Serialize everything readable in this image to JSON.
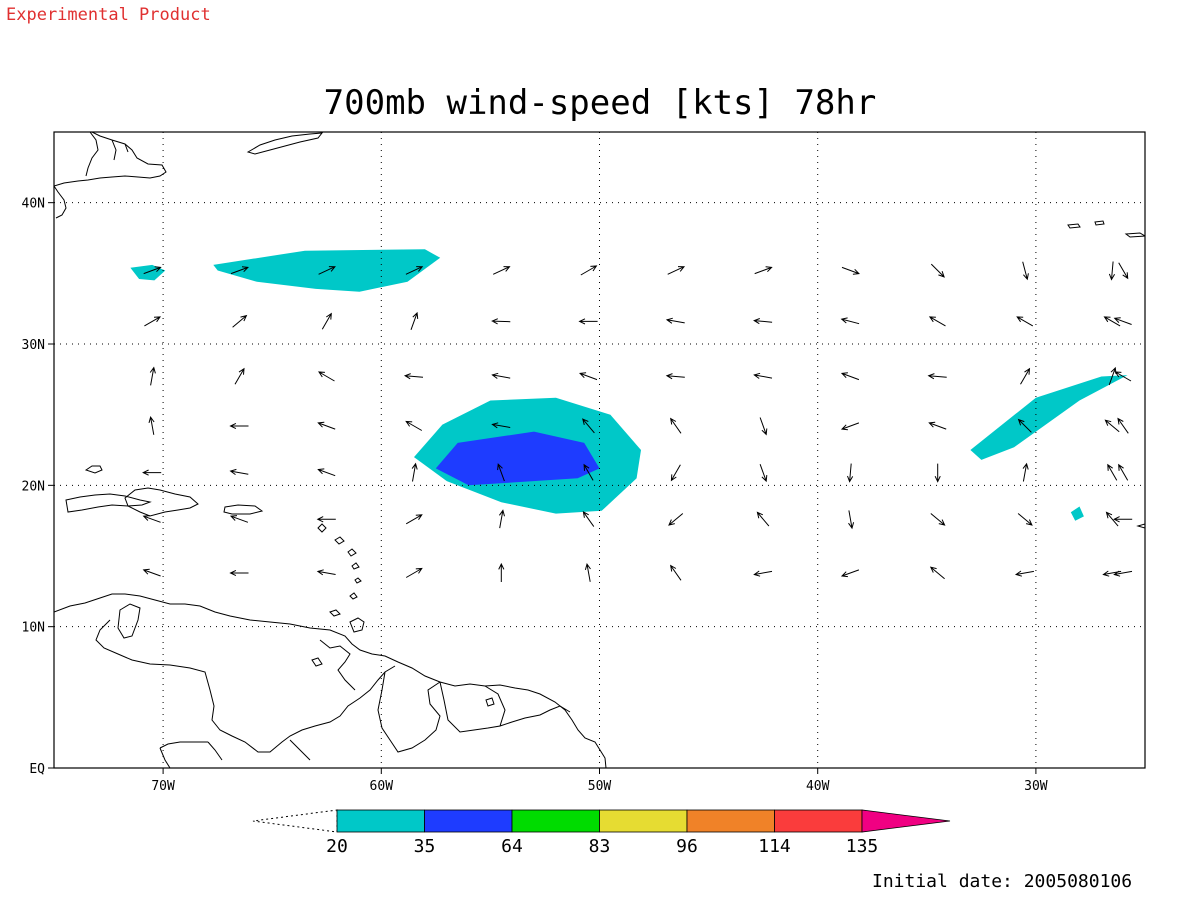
{
  "header": {
    "experimental_label": "Experimental Product",
    "title": "700mb wind-speed [kts] 78hr"
  },
  "map": {
    "lon_range": [
      -75,
      -25
    ],
    "lat_range": [
      0,
      45
    ],
    "grid_style": "dotted",
    "lon_ticks": [
      {
        "value": -70,
        "label": "70W"
      },
      {
        "value": -60,
        "label": "60W"
      },
      {
        "value": -50,
        "label": "50W"
      },
      {
        "value": -40,
        "label": "40W"
      },
      {
        "value": -30,
        "label": "30W"
      }
    ],
    "lat_ticks": [
      {
        "value": 40,
        "label": "40N"
      },
      {
        "value": 30,
        "label": "30N"
      },
      {
        "value": 20,
        "label": "20N"
      },
      {
        "value": 10,
        "label": "10N"
      },
      {
        "value": 0,
        "label": "EQ"
      }
    ]
  },
  "wind_field": {
    "shaded_regions": [
      {
        "name": "subtropical-jet-band",
        "level": "20-35",
        "lonlat": [
          [
            -67.7,
            35.6
          ],
          [
            -63.5,
            36.6
          ],
          [
            -58.0,
            36.7
          ],
          [
            -57.3,
            36.1
          ],
          [
            -58.8,
            34.4
          ],
          [
            -61.0,
            33.7
          ],
          [
            -63.0,
            33.9
          ],
          [
            -65.7,
            34.4
          ],
          [
            -67.5,
            35.2
          ]
        ]
      },
      {
        "name": "western-jet-patch",
        "level": "20-35",
        "lonlat": [
          [
            -71.5,
            35.4
          ],
          [
            -70.5,
            35.6
          ],
          [
            -69.9,
            35.2
          ],
          [
            -70.4,
            34.5
          ],
          [
            -71.1,
            34.6
          ]
        ]
      },
      {
        "name": "storm-outer-ring",
        "level": "20-35",
        "lonlat": [
          [
            -57.2,
            24.3
          ],
          [
            -55.0,
            26.0
          ],
          [
            -52.0,
            26.2
          ],
          [
            -49.5,
            25.0
          ],
          [
            -48.1,
            22.5
          ],
          [
            -48.3,
            20.5
          ],
          [
            -49.9,
            18.2
          ],
          [
            -52.0,
            18.0
          ],
          [
            -54.5,
            18.8
          ],
          [
            -57.0,
            20.3
          ],
          [
            -58.5,
            22.0
          ]
        ]
      },
      {
        "name": "storm-inner-core",
        "level": "35-64",
        "lonlat": [
          [
            -57.5,
            21.2
          ],
          [
            -56.5,
            23.0
          ],
          [
            -53.0,
            23.8
          ],
          [
            -50.7,
            23.0
          ],
          [
            -50.0,
            21.2
          ],
          [
            -51.0,
            20.5
          ],
          [
            -54.0,
            20.2
          ],
          [
            -56.0,
            20.0
          ]
        ]
      },
      {
        "name": "eastern-jet-streak",
        "level": "20-35",
        "lonlat": [
          [
            -33.0,
            22.5
          ],
          [
            -30.0,
            26.2
          ],
          [
            -27.0,
            27.7
          ],
          [
            -25.8,
            27.8
          ],
          [
            -28.0,
            26.0
          ],
          [
            -31.0,
            22.7
          ],
          [
            -32.5,
            21.8
          ]
        ]
      },
      {
        "name": "small-eastern-patch",
        "level": "20-35",
        "lonlat": [
          [
            -28.0,
            18.5
          ],
          [
            -27.8,
            17.8
          ],
          [
            -28.2,
            17.5
          ],
          [
            -28.4,
            18.1
          ]
        ]
      }
    ],
    "arrow_rows": [
      {
        "lat": 35.2,
        "directions_deg": [
          20,
          20,
          25,
          25,
          25,
          30,
          25,
          20,
          -20,
          -45,
          -75,
          -95,
          -60,
          -45,
          -45
        ]
      },
      {
        "lat": 31.6,
        "directions_deg": [
          30,
          40,
          60,
          70,
          178,
          180,
          170,
          175,
          165,
          150,
          150,
          150,
          160,
          80,
          85
        ]
      },
      {
        "lat": 27.7,
        "directions_deg": [
          80,
          60,
          150,
          175,
          170,
          160,
          175,
          170,
          160,
          175,
          60,
          70,
          150,
          125,
          125
        ]
      },
      {
        "lat": 24.2,
        "directions_deg": [
          100,
          180,
          160,
          150,
          170,
          130,
          125,
          -70,
          -160,
          160,
          135,
          140,
          125,
          105,
          105
        ]
      },
      {
        "lat": 20.9,
        "directions_deg": [
          180,
          170,
          160,
          80,
          110,
          120,
          -120,
          -70,
          -95,
          -90,
          80,
          120,
          120,
          120,
          120
        ]
      },
      {
        "lat": 17.6,
        "directions_deg": [
          160,
          160,
          180,
          30,
          80,
          125,
          -140,
          130,
          -80,
          -40,
          -40,
          130,
          180,
          180,
          180
        ]
      },
      {
        "lat": 13.8,
        "directions_deg": [
          160,
          180,
          170,
          30,
          90,
          100,
          125,
          -170,
          -160,
          140,
          -170,
          -170,
          -170,
          -170,
          -170
        ]
      }
    ],
    "arrow_lons": [
      -70.5,
      -66.5,
      -62.5,
      -58.5,
      -54.5,
      -50.5,
      -46.5,
      -42.5,
      -38.5,
      -34.5,
      -30.5,
      -26.5,
      -26,
      -25.5,
      -25
    ]
  },
  "colorbar": {
    "levels": [
      "20",
      "35",
      "64",
      "83",
      "96",
      "114",
      "135"
    ],
    "colors": [
      "#00c8c8",
      "#1e3cff",
      "#00dc00",
      "#e6dc32",
      "#f08228",
      "#fa3c3c",
      "#f00082"
    ]
  },
  "footer": {
    "initial_date_label": "Initial date: 2005080106"
  }
}
